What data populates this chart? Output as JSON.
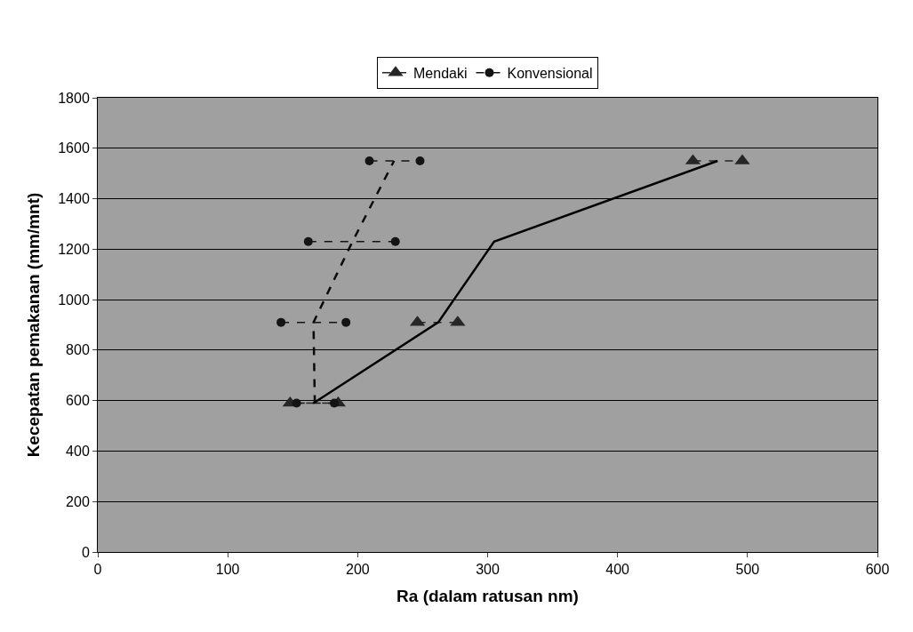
{
  "chart_data": {
    "type": "line",
    "xlabel": "Ra (dalam ratusan nm)",
    "ylabel": "Kecepatan pemakanan (mm/mnt)",
    "xlim": [
      0,
      600
    ],
    "xticks": [
      0,
      100,
      200,
      300,
      400,
      500,
      600
    ],
    "ylim": [
      0,
      1800
    ],
    "yticks": [
      0,
      200,
      400,
      600,
      800,
      1000,
      1200,
      1400,
      1600,
      1800
    ],
    "grid": "y",
    "legend": "top",
    "series": [
      {
        "name": "Mendaki",
        "color": "#262626",
        "marker": "triangle",
        "line_style": "dashed",
        "x": [
          148,
          185,
          null,
          246,
          277,
          null,
          458,
          496
        ],
        "values": [
          590,
          590,
          null,
          910,
          910,
          null,
          1550,
          1550
        ]
      },
      {
        "name": "Konvensional",
        "color": "#141414",
        "marker": "circle",
        "line_style": "dashed",
        "x": [
          153,
          182,
          null,
          141,
          191,
          null,
          162,
          229,
          null,
          209,
          248
        ],
        "values": [
          590,
          590,
          null,
          910,
          910,
          null,
          1230,
          1230,
          null,
          1550,
          1550
        ]
      },
      {
        "color": "#000000",
        "marker": "none",
        "line_style": "solid",
        "x": [
          166,
          262,
          305,
          477
        ],
        "values": [
          590,
          910,
          1230,
          1550
        ]
      },
      {
        "color": "#0a0a0a",
        "marker": "none",
        "line_style": "dashed",
        "x": [
          167,
          166,
          196,
          228
        ],
        "values": [
          590,
          910,
          1230,
          1550
        ]
      }
    ]
  }
}
